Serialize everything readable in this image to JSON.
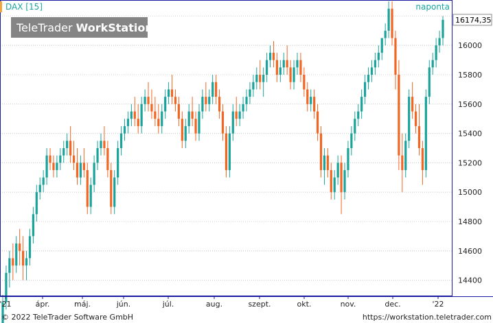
{
  "header": {
    "instrument": "DAX [15]",
    "period": "naponta"
  },
  "watermark": {
    "text_regular": "TeleTrader ",
    "text_bold": "WorkStation"
  },
  "footer": {
    "copyright": "© 2022 TeleTrader Software GmbH",
    "url": "https://workstation.teletrader.com"
  },
  "colors": {
    "up": "#1aa39a",
    "down": "#f26522",
    "accent": "#1aa3a3",
    "frame": "#1a1aa0"
  },
  "chart_data": {
    "type": "candlestick",
    "title": "DAX [15]",
    "period_label": "naponta",
    "ylim": [
      14300,
      16300
    ],
    "yticks": [
      14400,
      14600,
      14800,
      15000,
      15200,
      15400,
      15600,
      15800,
      16000
    ],
    "ytick_labels": [
      "14400",
      "14600",
      "14800",
      "15000",
      "15200",
      "15400",
      "15600",
      "15800",
      "16000"
    ],
    "xticks": [
      "'21",
      "ápr.",
      "máj.",
      "jún.",
      "júl.",
      "aug.",
      "szept.",
      "okt.",
      "nov.",
      "dec.",
      "'22"
    ],
    "last_price": 16174.35,
    "last_price_label": "16174,35",
    "grid": true,
    "series": [
      {
        "x_start": "2021-03-04",
        "x_end": "2022-01-04",
        "points": [
          [
            14100,
            14300,
            14050,
            14250
          ],
          [
            14250,
            14500,
            14200,
            14450
          ],
          [
            14450,
            14600,
            14350,
            14550
          ],
          [
            14550,
            14650,
            14400,
            14500
          ],
          [
            14500,
            14700,
            14450,
            14650
          ],
          [
            14650,
            14750,
            14500,
            14600
          ],
          [
            14600,
            14700,
            14400,
            14500
          ],
          [
            14500,
            14600,
            14400,
            14550
          ],
          [
            14550,
            14750,
            14500,
            14700
          ],
          [
            14700,
            14900,
            14650,
            14850
          ],
          [
            14850,
            15050,
            14800,
            15000
          ],
          [
            15000,
            15100,
            14950,
            15050
          ],
          [
            15050,
            15150,
            15000,
            15100
          ],
          [
            15100,
            15300,
            15050,
            15250
          ],
          [
            15250,
            15300,
            15150,
            15200
          ],
          [
            15200,
            15250,
            15100,
            15150
          ],
          [
            15150,
            15250,
            15100,
            15200
          ],
          [
            15200,
            15300,
            15150,
            15250
          ],
          [
            15250,
            15350,
            15200,
            15300
          ],
          [
            15300,
            15400,
            15250,
            15350
          ],
          [
            15350,
            15450,
            15200,
            15250
          ],
          [
            15250,
            15350,
            15150,
            15200
          ],
          [
            15200,
            15300,
            15050,
            15100
          ],
          [
            15100,
            15250,
            15050,
            15200
          ],
          [
            15200,
            15300,
            15100,
            15150
          ],
          [
            15150,
            15200,
            14850,
            14900
          ],
          [
            14900,
            15100,
            14850,
            15050
          ],
          [
            15050,
            15250,
            15000,
            15200
          ],
          [
            15200,
            15350,
            15150,
            15300
          ],
          [
            15300,
            15400,
            15250,
            15350
          ],
          [
            15350,
            15450,
            15250,
            15300
          ],
          [
            15300,
            15350,
            15100,
            15150
          ],
          [
            15150,
            15200,
            14850,
            14900
          ],
          [
            14900,
            15150,
            14850,
            15100
          ],
          [
            15100,
            15350,
            15050,
            15300
          ],
          [
            15300,
            15450,
            15250,
            15400
          ],
          [
            15400,
            15500,
            15350,
            15450
          ],
          [
            15450,
            15550,
            15400,
            15500
          ],
          [
            15500,
            15600,
            15450,
            15550
          ],
          [
            15550,
            15650,
            15450,
            15500
          ],
          [
            15500,
            15600,
            15400,
            15450
          ],
          [
            15450,
            15650,
            15400,
            15600
          ],
          [
            15600,
            15700,
            15550,
            15650
          ],
          [
            15650,
            15750,
            15550,
            15600
          ],
          [
            15600,
            15700,
            15500,
            15550
          ],
          [
            15550,
            15650,
            15450,
            15500
          ],
          [
            15500,
            15600,
            15400,
            15450
          ],
          [
            15450,
            15600,
            15400,
            15550
          ],
          [
            15550,
            15700,
            15500,
            15650
          ],
          [
            15650,
            15750,
            15600,
            15700
          ],
          [
            15700,
            15800,
            15600,
            15650
          ],
          [
            15650,
            15700,
            15550,
            15600
          ],
          [
            15600,
            15650,
            15450,
            15500
          ],
          [
            15500,
            15550,
            15300,
            15350
          ],
          [
            15350,
            15500,
            15300,
            15450
          ],
          [
            15450,
            15600,
            15400,
            15550
          ],
          [
            15550,
            15650,
            15450,
            15500
          ],
          [
            15500,
            15550,
            15350,
            15400
          ],
          [
            15400,
            15600,
            15350,
            15550
          ],
          [
            15550,
            15700,
            15500,
            15650
          ],
          [
            15650,
            15750,
            15550,
            15600
          ],
          [
            15600,
            15700,
            15550,
            15650
          ],
          [
            15650,
            15800,
            15600,
            15750
          ],
          [
            15750,
            15800,
            15600,
            15650
          ],
          [
            15650,
            15700,
            15500,
            15550
          ],
          [
            15550,
            15600,
            15350,
            15400
          ],
          [
            15400,
            15450,
            15100,
            15150
          ],
          [
            15150,
            15450,
            15100,
            15400
          ],
          [
            15400,
            15600,
            15350,
            15550
          ],
          [
            15550,
            15650,
            15450,
            15500
          ],
          [
            15500,
            15600,
            15450,
            15550
          ],
          [
            15550,
            15650,
            15500,
            15600
          ],
          [
            15600,
            15700,
            15550,
            15650
          ],
          [
            15650,
            15750,
            15600,
            15700
          ],
          [
            15700,
            15800,
            15650,
            15750
          ],
          [
            15750,
            15850,
            15700,
            15800
          ],
          [
            15800,
            15900,
            15700,
            15750
          ],
          [
            15750,
            15850,
            15650,
            15800
          ],
          [
            15800,
            15950,
            15750,
            15900
          ],
          [
            15900,
            16000,
            15850,
            15950
          ],
          [
            15950,
            16030,
            15850,
            15900
          ],
          [
            15900,
            15950,
            15750,
            15800
          ],
          [
            15800,
            15900,
            15750,
            15850
          ],
          [
            15850,
            15950,
            15800,
            15900
          ],
          [
            15900,
            16000,
            15800,
            15850
          ],
          [
            15850,
            15900,
            15700,
            15750
          ],
          [
            15750,
            15900,
            15700,
            15850
          ],
          [
            15850,
            15950,
            15800,
            15900
          ],
          [
            15900,
            15950,
            15750,
            15800
          ],
          [
            15800,
            15850,
            15650,
            15700
          ],
          [
            15700,
            15750,
            15550,
            15600
          ],
          [
            15600,
            15700,
            15550,
            15650
          ],
          [
            15650,
            15700,
            15500,
            15550
          ],
          [
            15550,
            15600,
            15350,
            15400
          ],
          [
            15400,
            15450,
            15100,
            15150
          ],
          [
            15150,
            15300,
            15050,
            15250
          ],
          [
            15250,
            15300,
            15100,
            15150
          ],
          [
            15150,
            15200,
            14950,
            15000
          ],
          [
            15000,
            15150,
            14950,
            15100
          ],
          [
            15100,
            15250,
            15050,
            15200
          ],
          [
            15200,
            15250,
            14850,
            15000
          ],
          [
            15000,
            15200,
            14950,
            15150
          ],
          [
            15150,
            15350,
            15100,
            15300
          ],
          [
            15300,
            15450,
            15250,
            15400
          ],
          [
            15400,
            15550,
            15350,
            15500
          ],
          [
            15500,
            15600,
            15450,
            15550
          ],
          [
            15550,
            15700,
            15500,
            15650
          ],
          [
            15650,
            15800,
            15600,
            15750
          ],
          [
            15750,
            15850,
            15700,
            15800
          ],
          [
            15800,
            15900,
            15750,
            15850
          ],
          [
            15850,
            15950,
            15800,
            15900
          ],
          [
            15900,
            16000,
            15850,
            15950
          ],
          [
            15950,
            16050,
            15900,
            16050
          ],
          [
            16050,
            16150,
            16000,
            16100
          ],
          [
            16100,
            16300,
            16050,
            16250
          ],
          [
            16250,
            16300,
            16000,
            16050
          ],
          [
            16050,
            16100,
            15700,
            15800
          ],
          [
            15800,
            15900,
            15150,
            15250
          ],
          [
            15250,
            15400,
            15000,
            15150
          ],
          [
            15150,
            15400,
            15100,
            15350
          ],
          [
            15350,
            15700,
            15300,
            15650
          ],
          [
            15650,
            15750,
            15500,
            15550
          ],
          [
            15550,
            15600,
            15400,
            15450
          ],
          [
            15450,
            15600,
            15250,
            15300
          ],
          [
            15300,
            15350,
            15050,
            15150
          ],
          [
            15150,
            15700,
            15100,
            15650
          ],
          [
            15650,
            15900,
            15600,
            15850
          ],
          [
            15850,
            15950,
            15800,
            15900
          ],
          [
            15900,
            16050,
            15850,
            16000
          ],
          [
            16000,
            16100,
            15950,
            16050
          ],
          [
            16050,
            16200,
            16000,
            16174.35
          ]
        ]
      }
    ]
  }
}
